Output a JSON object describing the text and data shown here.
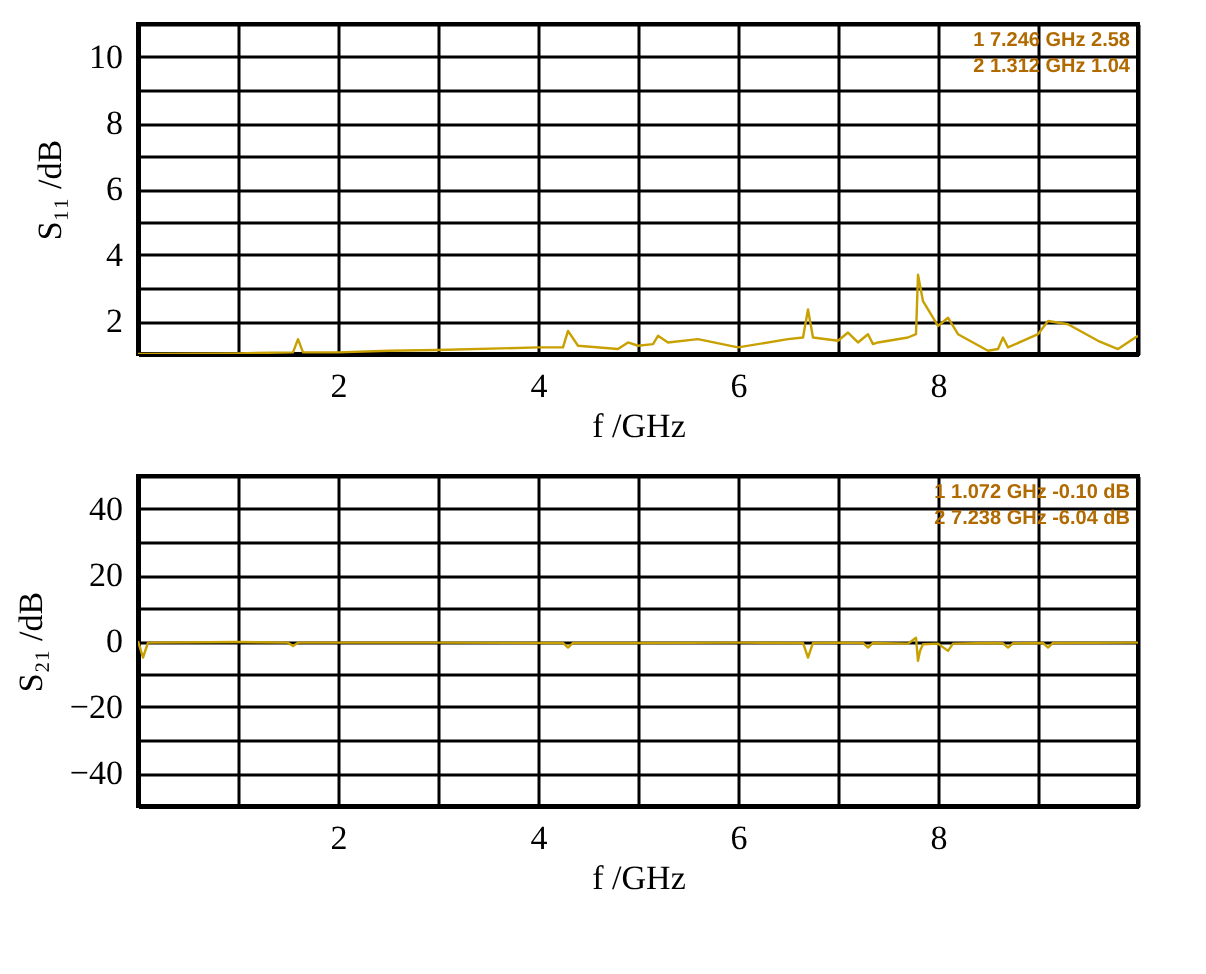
{
  "chart_data": [
    {
      "type": "line",
      "xlabel": "f /GHz",
      "ylabel": "S₁₁ /dB",
      "xlim": [
        0,
        10
      ],
      "ylim": [
        1,
        11
      ],
      "grid": true,
      "marker": "none",
      "line_style": "solid",
      "xticks": [
        {
          "value": 0,
          "label": null
        },
        {
          "value": 1,
          "label": null
        },
        2,
        {
          "value": 3,
          "label": null
        },
        4,
        {
          "value": 5,
          "label": null
        },
        6,
        {
          "value": 7,
          "label": null
        },
        8,
        {
          "value": 9,
          "label": null
        },
        {
          "value": 10,
          "label": null
        }
      ],
      "yticks": [
        {
          "value": 1,
          "label": null
        },
        2,
        {
          "value": 3,
          "label": null
        },
        4,
        {
          "value": 5,
          "label": null
        },
        6,
        {
          "value": 7,
          "label": null
        },
        8,
        {
          "value": 9,
          "label": null
        },
        10,
        {
          "value": 11,
          "label": null
        }
      ],
      "annotations": [
        "1   7.246 GHz   2.58",
        "2   1.312 GHz   1.04"
      ],
      "series": [
        {
          "color": "#c8a000",
          "x": [
            0,
            1.0,
            1.55,
            1.6,
            1.65,
            2.0,
            2.5,
            3.0,
            4.0,
            4.25,
            4.3,
            4.4,
            4.8,
            4.9,
            5.0,
            5.15,
            5.2,
            5.3,
            5.6,
            6.0,
            6.5,
            6.65,
            6.7,
            6.75,
            7.0,
            7.1,
            7.2,
            7.3,
            7.35,
            7.4,
            7.7,
            7.78,
            7.8,
            7.85,
            8.0,
            8.1,
            8.2,
            8.5,
            8.6,
            8.65,
            8.7,
            9.0,
            9.1,
            9.3,
            9.6,
            9.8,
            10.0
          ],
          "values": [
            1.0,
            1.02,
            1.05,
            1.45,
            1.05,
            1.05,
            1.1,
            1.12,
            1.2,
            1.2,
            1.7,
            1.25,
            1.15,
            1.35,
            1.25,
            1.3,
            1.55,
            1.35,
            1.45,
            1.2,
            1.45,
            1.5,
            2.35,
            1.5,
            1.4,
            1.65,
            1.35,
            1.6,
            1.3,
            1.35,
            1.5,
            1.6,
            3.4,
            2.6,
            1.85,
            2.1,
            1.6,
            1.1,
            1.15,
            1.5,
            1.2,
            1.6,
            2.0,
            1.9,
            1.4,
            1.15,
            1.55
          ]
        }
      ]
    },
    {
      "type": "line",
      "xlabel": "f /GHz",
      "ylabel": "S₂₁ /dB",
      "xlim": [
        0,
        10
      ],
      "ylim": [
        -50,
        50
      ],
      "grid": true,
      "marker": "none",
      "line_style": "solid",
      "xticks": [
        {
          "value": 0,
          "label": null
        },
        {
          "value": 1,
          "label": null
        },
        2,
        {
          "value": 3,
          "label": null
        },
        4,
        {
          "value": 5,
          "label": null
        },
        6,
        {
          "value": 7,
          "label": null
        },
        8,
        {
          "value": 9,
          "label": null
        },
        {
          "value": 10,
          "label": null
        }
      ],
      "yticks": [
        {
          "value": -50,
          "label": null
        },
        -40,
        {
          "value": -30,
          "label": null
        },
        -20,
        {
          "value": -10,
          "label": null
        },
        0,
        {
          "value": 10,
          "label": null
        },
        20,
        {
          "value": 30,
          "label": null
        },
        40,
        {
          "value": 50,
          "label": null
        }
      ],
      "annotations": [
        "1   1.072 GHz   -0.10 dB",
        "2   7.238 GHz   -6.04 dB"
      ],
      "series": [
        {
          "color": "#c8a000",
          "x": [
            0,
            0.05,
            0.1,
            1.0,
            1.5,
            1.55,
            1.6,
            3.0,
            4.25,
            4.3,
            4.35,
            5.0,
            6.0,
            6.65,
            6.7,
            6.75,
            7.0,
            7.25,
            7.3,
            7.35,
            7.7,
            7.78,
            7.8,
            7.82,
            7.85,
            8.0,
            8.1,
            8.15,
            8.5,
            8.65,
            8.7,
            8.75,
            9.05,
            9.1,
            9.15,
            10.0
          ],
          "values": [
            0,
            -5,
            -0.5,
            -0.3,
            -0.5,
            -1.5,
            -0.5,
            -0.5,
            -0.6,
            -2,
            -0.6,
            -0.6,
            -0.5,
            -0.6,
            -5,
            -0.6,
            -0.5,
            -0.6,
            -2,
            -0.6,
            -0.8,
            1,
            -6,
            -3,
            -1,
            -0.8,
            -3,
            -0.8,
            -0.6,
            -0.7,
            -2,
            -0.7,
            -0.6,
            -2,
            -0.6,
            -0.5
          ]
        }
      ]
    }
  ]
}
